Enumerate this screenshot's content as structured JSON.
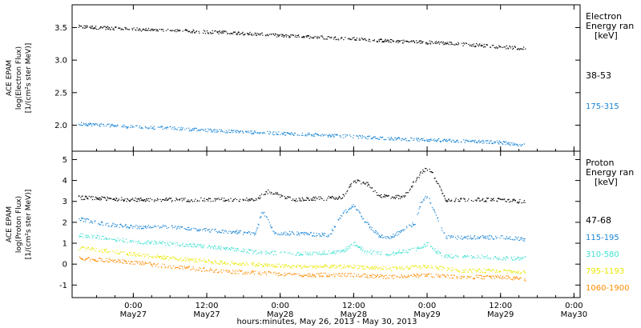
{
  "figure": {
    "xlabel": "hours:minutes, May 26, 2013 - May 30, 2013",
    "x_ticks": [
      {
        "hour": 6,
        "time": "0:00",
        "date": "May27"
      },
      {
        "hour": 18,
        "time": "12:00",
        "date": "May27"
      },
      {
        "hour": 30,
        "time": "0:00",
        "date": "May28"
      },
      {
        "hour": 42,
        "time": "12:00",
        "date": "May28"
      },
      {
        "hour": 54,
        "time": "0:00",
        "date": "May29"
      },
      {
        "hour": 66,
        "time": "12:00",
        "date": "May29"
      },
      {
        "hour": 78,
        "time": "0:00",
        "date": "May30"
      }
    ]
  },
  "chart_data": [
    {
      "type": "scatter",
      "panel": "electron",
      "ylabel": [
        "ACE EPAM",
        "log(Electron Flux)",
        "[1/(cm²s ster MeV)]"
      ],
      "ylim": [
        1.6,
        3.85
      ],
      "y_ticks": [
        "2.0",
        "2.5",
        "3.0",
        "3.5"
      ],
      "y_tick_values": [
        2.0,
        2.5,
        3.0,
        3.5
      ],
      "x_range_hours": [
        -4,
        79
      ],
      "legend_title": [
        "Electron",
        "Energy ran",
        "[keV]"
      ],
      "series": [
        {
          "name": "38-53",
          "color": "#000000",
          "x": [
            -3,
            6,
            12,
            18,
            24,
            30,
            36,
            42,
            48,
            54,
            60,
            66,
            70
          ],
          "y": [
            3.52,
            3.48,
            3.46,
            3.44,
            3.42,
            3.38,
            3.36,
            3.33,
            3.3,
            3.28,
            3.25,
            3.21,
            3.18
          ]
        },
        {
          "name": "175-315",
          "color": "#1a85d6",
          "x": [
            -3,
            6,
            12,
            18,
            24,
            30,
            36,
            42,
            48,
            54,
            60,
            66,
            70
          ],
          "y": [
            2.03,
            1.98,
            1.96,
            1.93,
            1.9,
            1.88,
            1.86,
            1.83,
            1.8,
            1.78,
            1.76,
            1.74,
            1.7
          ]
        }
      ]
    },
    {
      "type": "scatter",
      "panel": "proton",
      "ylabel": [
        "ACE EPAM",
        "log(Proton Flux)",
        "[1/(cm²s ster MeV)]"
      ],
      "ylim": [
        -1.6,
        5.4
      ],
      "y_ticks": [
        "-1",
        "0",
        "1",
        "2",
        "3",
        "4",
        "5"
      ],
      "y_tick_values": [
        -1,
        0,
        1,
        2,
        3,
        4,
        5
      ],
      "x_range_hours": [
        -4,
        79
      ],
      "legend_title": [
        "Proton",
        "Energy ran",
        "[keV]"
      ],
      "series": [
        {
          "name": "47-68",
          "color": "#000000",
          "x": [
            -3,
            6,
            12,
            20,
            26,
            28,
            32,
            40,
            42,
            44,
            46,
            50,
            53,
            54,
            55,
            57,
            62,
            66,
            70
          ],
          "y": [
            3.2,
            3.1,
            3.1,
            3.1,
            3.1,
            3.5,
            3.1,
            3.2,
            4.0,
            3.9,
            3.3,
            3.2,
            4.4,
            4.6,
            4.3,
            3.1,
            3.1,
            3.1,
            3.0
          ]
        },
        {
          "name": "115-195",
          "color": "#1a85d6",
          "x": [
            -3,
            2,
            6,
            12,
            20,
            26,
            27,
            29,
            32,
            38,
            40,
            42,
            44,
            46,
            48,
            52,
            53,
            54,
            55,
            57,
            62,
            66,
            70
          ],
          "y": [
            2.2,
            1.9,
            1.8,
            1.8,
            1.6,
            1.5,
            2.6,
            1.5,
            1.5,
            1.4,
            2.4,
            2.8,
            2.0,
            1.4,
            1.3,
            2.0,
            3.0,
            3.3,
            2.6,
            1.3,
            1.3,
            1.3,
            1.2
          ]
        },
        {
          "name": "310-580",
          "color": "#40e0d0",
          "x": [
            -3,
            6,
            12,
            20,
            26,
            32,
            40,
            42,
            44,
            48,
            53,
            54,
            55,
            57,
            62,
            66,
            70
          ],
          "y": [
            1.4,
            1.1,
            1.0,
            0.8,
            0.6,
            0.5,
            0.6,
            1.0,
            0.6,
            0.5,
            0.8,
            1.0,
            0.7,
            0.4,
            0.4,
            0.3,
            0.3
          ]
        },
        {
          "name": "795-1193",
          "color": "#e8e800",
          "x": [
            -3,
            6,
            12,
            20,
            26,
            32,
            42,
            48,
            54,
            60,
            66,
            70
          ],
          "y": [
            0.8,
            0.5,
            0.3,
            0.1,
            0.0,
            -0.1,
            -0.1,
            -0.2,
            -0.1,
            -0.3,
            -0.3,
            -0.4
          ]
        },
        {
          "name": "1060-1900",
          "color": "#ff8c00",
          "x": [
            -3,
            6,
            12,
            20,
            26,
            32,
            42,
            48,
            54,
            60,
            66,
            70
          ],
          "y": [
            0.3,
            0.1,
            -0.1,
            -0.3,
            -0.4,
            -0.5,
            -0.5,
            -0.6,
            -0.5,
            -0.6,
            -0.6,
            -0.7
          ]
        }
      ]
    }
  ]
}
